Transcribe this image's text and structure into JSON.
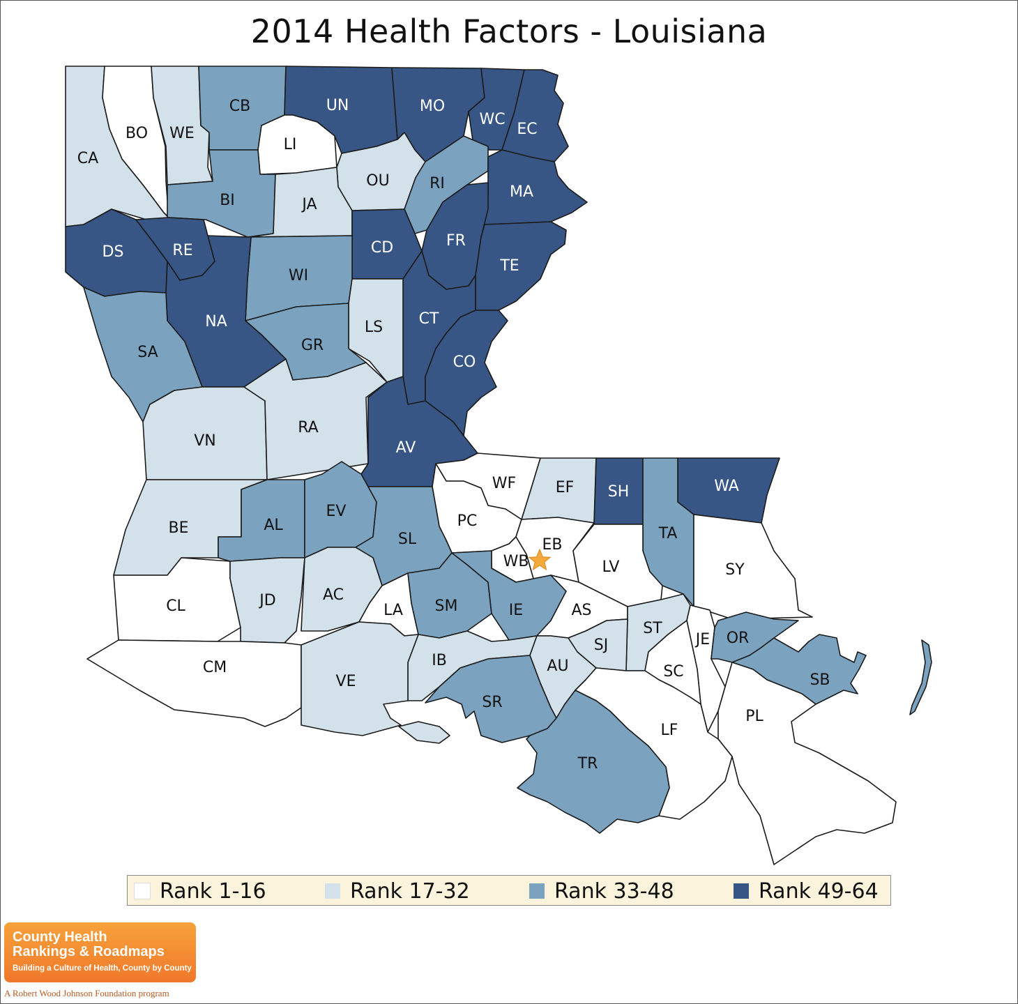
{
  "title": "2014 Health Factors - Louisiana",
  "legend": [
    {
      "label": "Rank 1-16",
      "color": "#ffffff"
    },
    {
      "label": "Rank 17-32",
      "color": "#d3e1ea"
    },
    {
      "label": "Rank 33-48",
      "color": "#7ba3c0"
    },
    {
      "label": "Rank 49-64",
      "color": "#375685"
    }
  ],
  "parishes": [
    {
      "abbr": "CA",
      "rank_group": 2
    },
    {
      "abbr": "BO",
      "rank_group": 1
    },
    {
      "abbr": "WE",
      "rank_group": 2
    },
    {
      "abbr": "CB",
      "rank_group": 3
    },
    {
      "abbr": "UN",
      "rank_group": 4
    },
    {
      "abbr": "MO",
      "rank_group": 4
    },
    {
      "abbr": "WC",
      "rank_group": 4
    },
    {
      "abbr": "EC",
      "rank_group": 4
    },
    {
      "abbr": "LI",
      "rank_group": 1
    },
    {
      "abbr": "OU",
      "rank_group": 2
    },
    {
      "abbr": "RI",
      "rank_group": 3
    },
    {
      "abbr": "BI",
      "rank_group": 3
    },
    {
      "abbr": "JA",
      "rank_group": 2
    },
    {
      "abbr": "MA",
      "rank_group": 4
    },
    {
      "abbr": "DS",
      "rank_group": 4
    },
    {
      "abbr": "RE",
      "rank_group": 4
    },
    {
      "abbr": "CD",
      "rank_group": 4
    },
    {
      "abbr": "FR",
      "rank_group": 4
    },
    {
      "abbr": "WI",
      "rank_group": 3
    },
    {
      "abbr": "TE",
      "rank_group": 4
    },
    {
      "abbr": "NA",
      "rank_group": 4
    },
    {
      "abbr": "CT",
      "rank_group": 4
    },
    {
      "abbr": "LS",
      "rank_group": 2
    },
    {
      "abbr": "GR",
      "rank_group": 3
    },
    {
      "abbr": "SA",
      "rank_group": 3
    },
    {
      "abbr": "CO",
      "rank_group": 4
    },
    {
      "abbr": "VN",
      "rank_group": 2
    },
    {
      "abbr": "RA",
      "rank_group": 2
    },
    {
      "abbr": "AV",
      "rank_group": 4
    },
    {
      "abbr": "WF",
      "rank_group": 1
    },
    {
      "abbr": "EF",
      "rank_group": 2
    },
    {
      "abbr": "SH",
      "rank_group": 4
    },
    {
      "abbr": "WA",
      "rank_group": 4
    },
    {
      "abbr": "BE",
      "rank_group": 2
    },
    {
      "abbr": "AL",
      "rank_group": 3
    },
    {
      "abbr": "EV",
      "rank_group": 3
    },
    {
      "abbr": "PC",
      "rank_group": 1
    },
    {
      "abbr": "SL",
      "rank_group": 3
    },
    {
      "abbr": "EB",
      "rank_group": 1
    },
    {
      "abbr": "TA",
      "rank_group": 3
    },
    {
      "abbr": "WB",
      "rank_group": 1
    },
    {
      "abbr": "LV",
      "rank_group": 1
    },
    {
      "abbr": "SY",
      "rank_group": 1
    },
    {
      "abbr": "CL",
      "rank_group": 1
    },
    {
      "abbr": "JD",
      "rank_group": 2
    },
    {
      "abbr": "AC",
      "rank_group": 2
    },
    {
      "abbr": "LA",
      "rank_group": 1
    },
    {
      "abbr": "SM",
      "rank_group": 3
    },
    {
      "abbr": "IE",
      "rank_group": 3
    },
    {
      "abbr": "AS",
      "rank_group": 1
    },
    {
      "abbr": "ST",
      "rank_group": 2
    },
    {
      "abbr": "JE",
      "rank_group": 1
    },
    {
      "abbr": "OR",
      "rank_group": 3
    },
    {
      "abbr": "SJ",
      "rank_group": 2
    },
    {
      "abbr": "CM",
      "rank_group": 1
    },
    {
      "abbr": "IB",
      "rank_group": 2
    },
    {
      "abbr": "SC",
      "rank_group": 1
    },
    {
      "abbr": "SB",
      "rank_group": 3
    },
    {
      "abbr": "AU",
      "rank_group": 2
    },
    {
      "abbr": "VE",
      "rank_group": 2
    },
    {
      "abbr": "SR",
      "rank_group": 3
    },
    {
      "abbr": "PL",
      "rank_group": 1
    },
    {
      "abbr": "LF",
      "rank_group": 1
    },
    {
      "abbr": "TR",
      "rank_group": 3
    }
  ],
  "logo": {
    "line1": "County Health",
    "line2": "Rankings & Roadmaps",
    "tagline": "Building a Culture of Health, County by County",
    "footer": "A Robert Wood Johnson Foundation program"
  }
}
